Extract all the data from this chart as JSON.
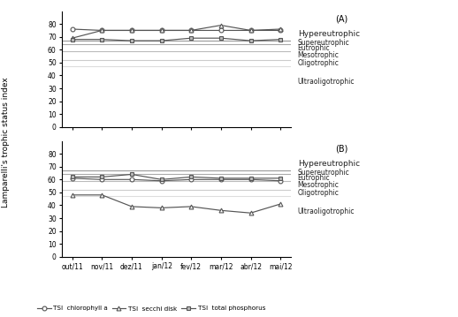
{
  "months": [
    "out/11",
    "nov/11",
    "dez/11",
    "jan/12",
    "fev/12",
    "mar/12",
    "abr/12",
    "mai/12"
  ],
  "panel_A": {
    "chlorophyll_a": [
      76,
      75,
      75,
      75,
      75,
      75,
      75,
      75
    ],
    "secchi_disk": [
      69,
      75,
      75,
      75,
      75,
      79,
      75,
      76
    ],
    "total_phosphorus": [
      68,
      68,
      67,
      67,
      69,
      69,
      67,
      68
    ]
  },
  "panel_B": {
    "chlorophyll_a": [
      61,
      60,
      60,
      59,
      60,
      60,
      60,
      59
    ],
    "secchi_disk": [
      48,
      48,
      39,
      38,
      39,
      36,
      34,
      41
    ],
    "total_phosphorus": [
      62,
      62,
      64,
      60,
      62,
      61,
      61,
      61
    ]
  },
  "trophic_lines": [
    67,
    64,
    59,
    52,
    47
  ],
  "trophic_line_colors": [
    "#999999",
    "#aaaaaa",
    "#bbbbbb",
    "#cccccc",
    "#dddddd"
  ],
  "trophic_labels_A": [
    [
      "Hypereutrophic",
      72
    ],
    [
      "Supereutrophic",
      65.5
    ],
    [
      "Eutrophic",
      61.5
    ],
    [
      "Mesotrophic",
      55.5
    ],
    [
      "Oligotrophic",
      49.5
    ],
    [
      "Ultraoligotrophic",
      35
    ]
  ],
  "trophic_labels_B": [
    [
      "Hypereutrophic",
      72
    ],
    [
      "Supereutrophic",
      65.5
    ],
    [
      "Eutrophic",
      61.5
    ],
    [
      "Mesotrophic",
      55.5
    ],
    [
      "Oligotrophic",
      49.5
    ],
    [
      "Ultraoligotrophic",
      35
    ]
  ],
  "ylim": [
    0,
    90
  ],
  "yticks": [
    0,
    10,
    20,
    30,
    40,
    50,
    60,
    70,
    80
  ],
  "line_color": "#555555",
  "label_A": "(A)",
  "label_B": "(B)",
  "ylabel": "Lamparelli's trophic status index",
  "legend_labels": [
    "TSI  chlorophyll a",
    "TSI  secchi disk",
    "TSI  total phosphorus"
  ]
}
